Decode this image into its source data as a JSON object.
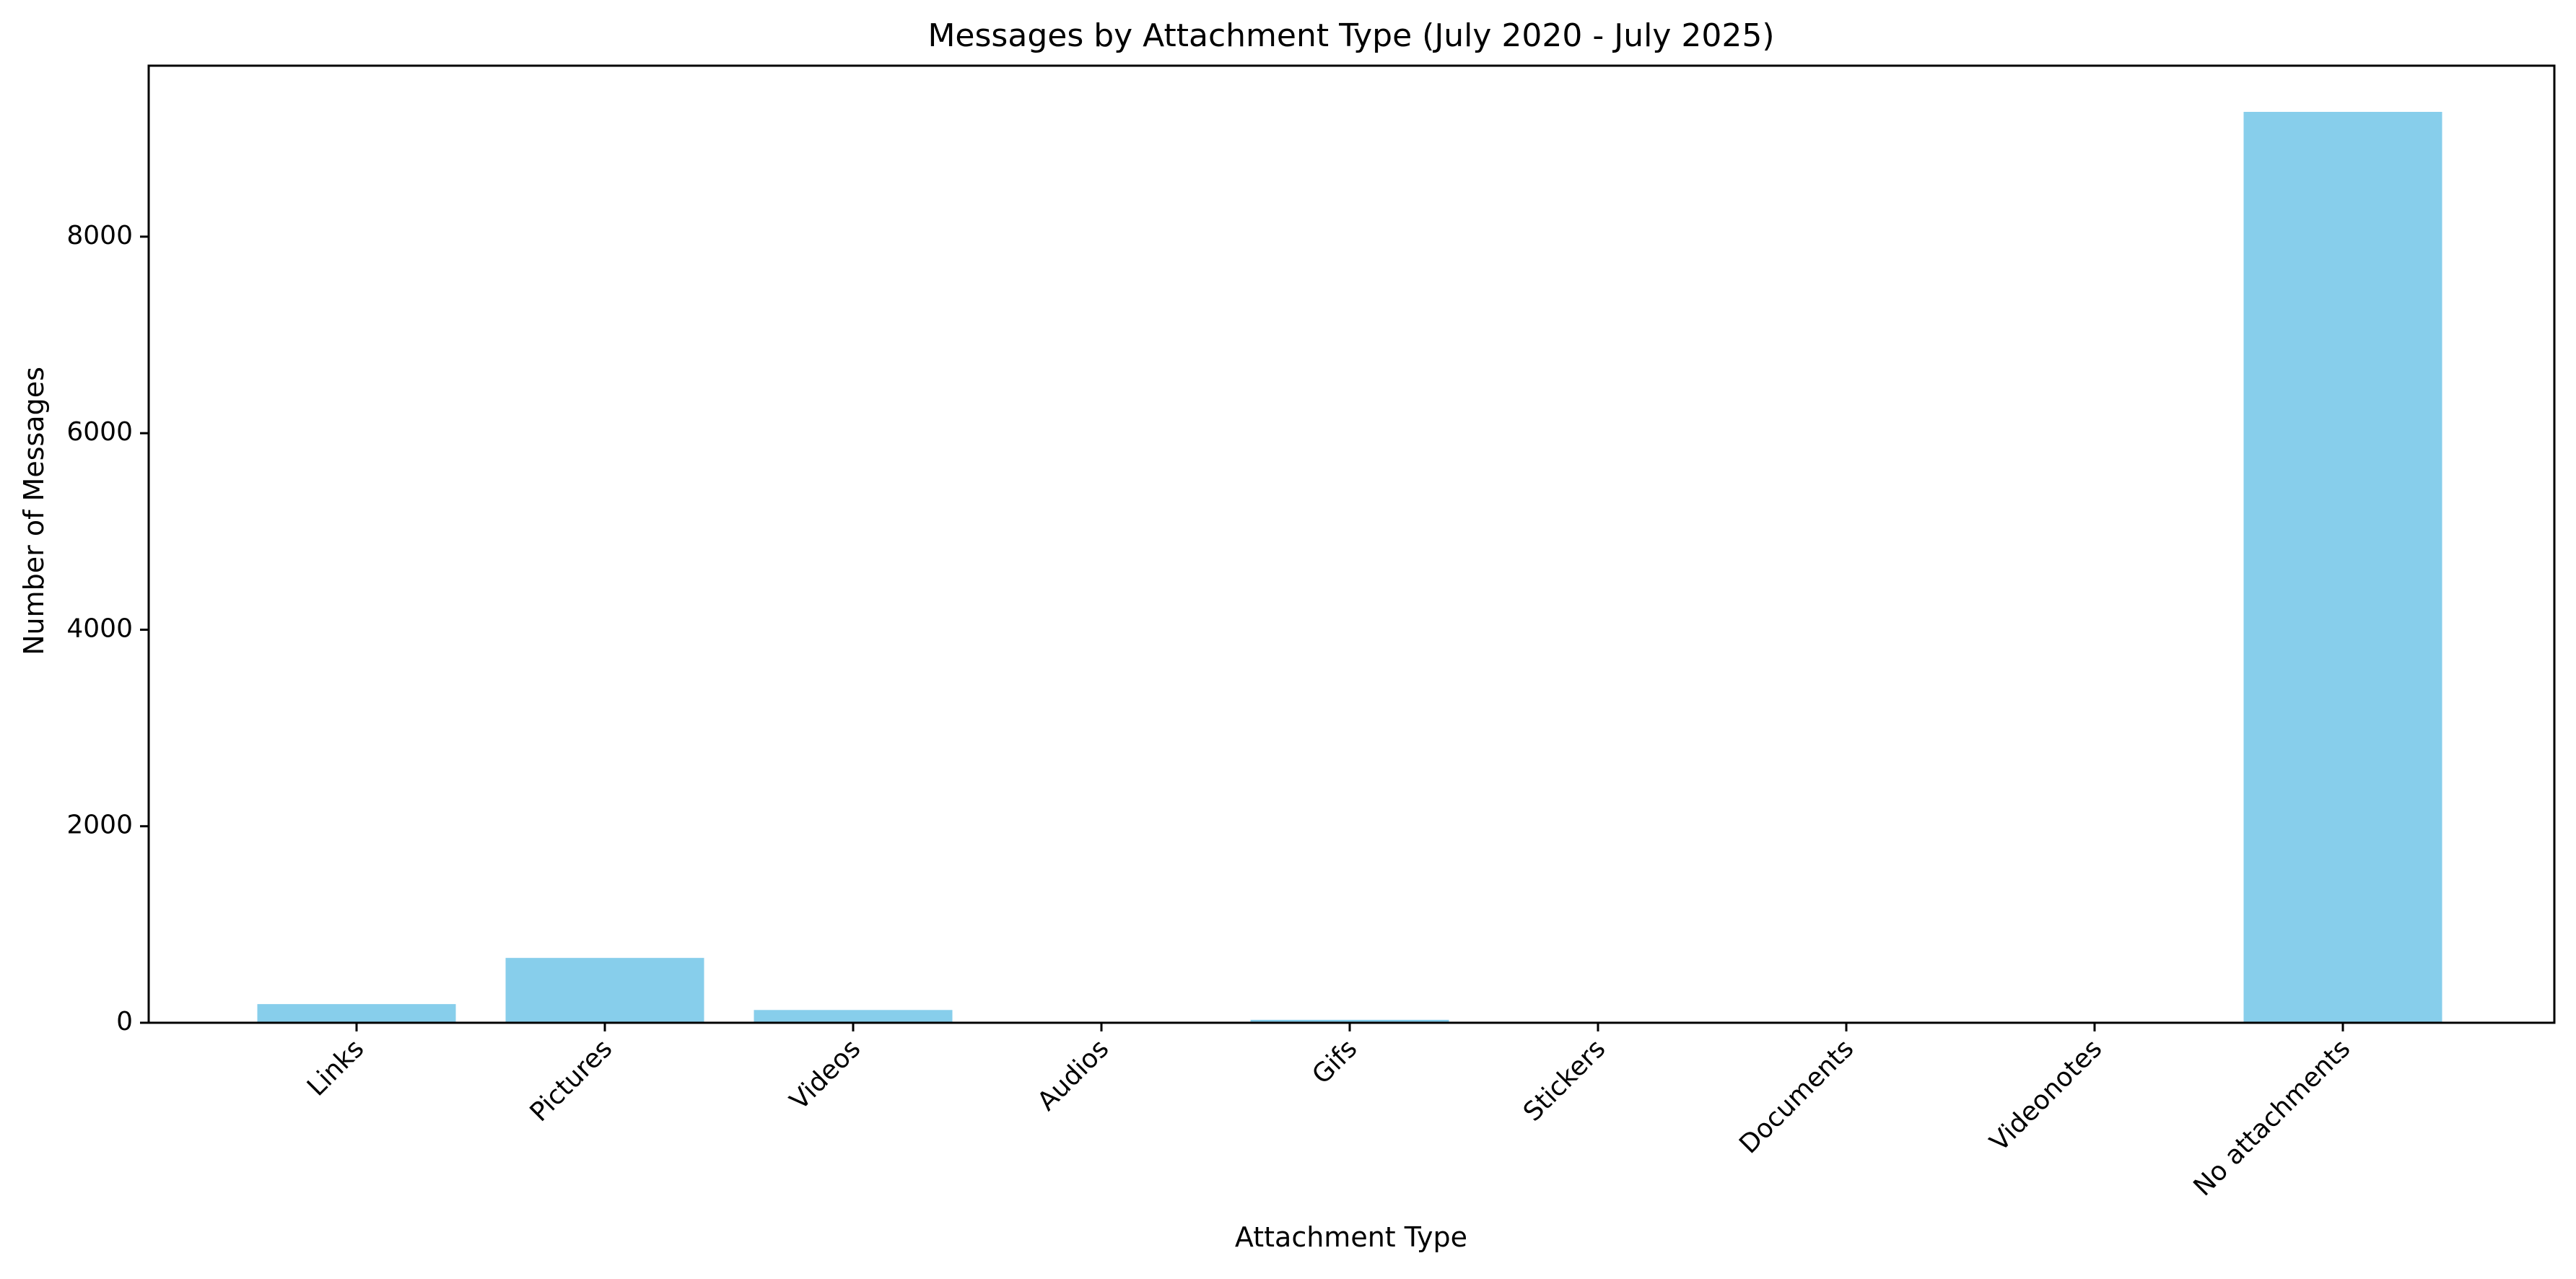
{
  "chart_data": {
    "type": "bar",
    "title": "Messages by Attachment Type (July 2020 - July 2025)",
    "xlabel": "Attachment Type",
    "ylabel": "Number of Messages",
    "categories": [
      "Links",
      "Pictures",
      "Videos",
      "Audios",
      "Gifs",
      "Stickers",
      "Documents",
      "Videonotes",
      "No attachments"
    ],
    "values": [
      190,
      660,
      130,
      0,
      30,
      0,
      10,
      0,
      9270
    ],
    "ylim": [
      0,
      9740
    ],
    "yticks": [
      0,
      2000,
      4000,
      6000,
      8000
    ],
    "ytick_labels": [
      "0",
      "2000",
      "4000",
      "6000",
      "8000"
    ],
    "bar_color": "#87ceeb",
    "grid": false,
    "legend": "none"
  }
}
